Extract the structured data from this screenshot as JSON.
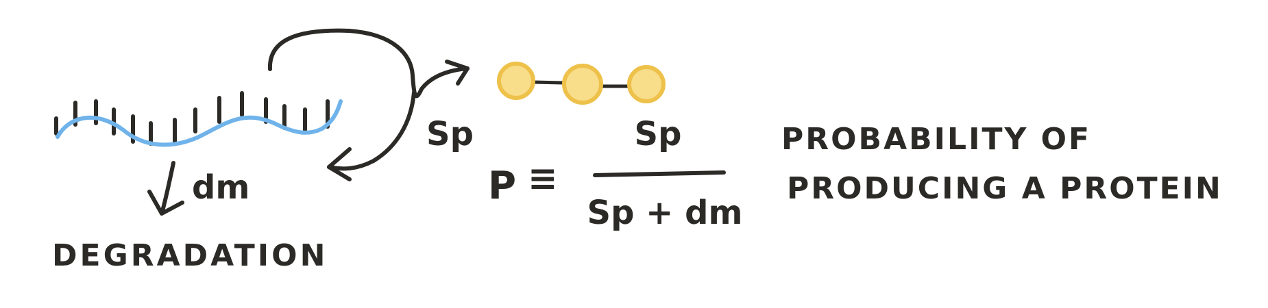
{
  "labels": {
    "sp_rate": "Sp",
    "dm_rate": "dm",
    "degradation": "DEGRADATION",
    "p_symbol": "P",
    "equiv": "≡",
    "numerator": "Sp",
    "denominator": "Sp + dm",
    "probability_line1": "PROBABILITY OF",
    "probability_line2": "PRODUCING A PROTEIN"
  },
  "colors": {
    "ink": "#2b2a26",
    "mrna": "#6fb3ea",
    "protein_fill": "#f8dd8a",
    "protein_outline": "#eec14a"
  }
}
